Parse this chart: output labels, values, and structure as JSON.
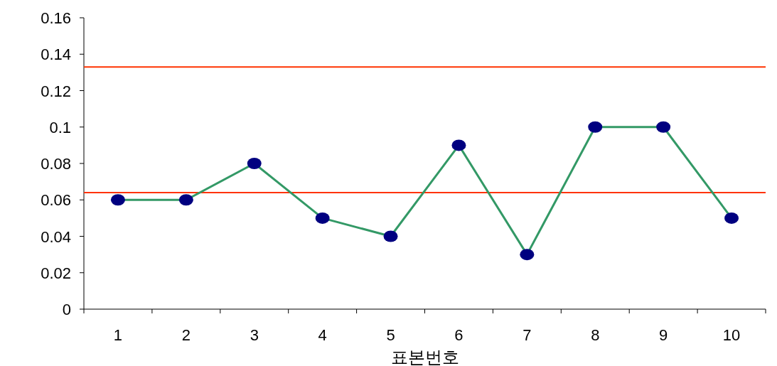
{
  "chart_data": {
    "type": "line",
    "xlabel": "표본번호",
    "categories": [
      "1",
      "2",
      "3",
      "4",
      "5",
      "6",
      "7",
      "8",
      "9",
      "10"
    ],
    "series": [
      {
        "color": "#339966",
        "colors": [
          "#000080",
          "#000080",
          "#000080",
          "#000080",
          "#000080",
          "#000080",
          "#000080",
          "#000080",
          "#000080",
          "#000080"
        ],
        "values": [
          0.06,
          0.06,
          0.08,
          0.05,
          0.04,
          0.09,
          0.03,
          0.1,
          0.1,
          0.05
        ]
      }
    ],
    "ylim": [
      0,
      0.16
    ],
    "yticks": [
      0,
      0.02,
      0.04,
      0.06,
      0.08,
      0.1,
      0.12,
      0.14,
      0.16
    ],
    "ref_lines": [
      {
        "axis": "y",
        "value": 0.133,
        "color": "#ff3300"
      },
      {
        "axis": "y",
        "value": 0.064,
        "color": "#ff3300"
      }
    ],
    "marker": "circle",
    "line_style": "solid"
  }
}
